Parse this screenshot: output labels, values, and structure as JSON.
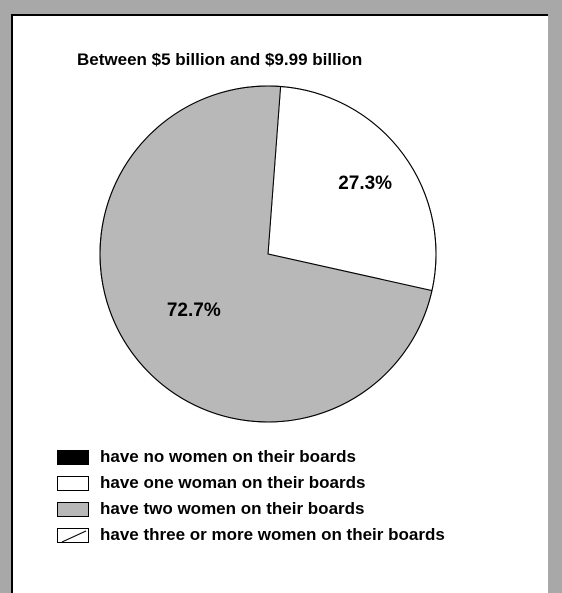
{
  "chart_data": {
    "type": "pie",
    "title": "Between $5 billion and $9.99 billion",
    "slices": [
      {
        "label": "have no women on their boards",
        "value": 0,
        "color": "#000000",
        "display": ""
      },
      {
        "label": "have one woman on their boards",
        "value": 27.3,
        "color": "#ffffff",
        "display": "27.3%"
      },
      {
        "label": "have two women on their boards",
        "value": 72.7,
        "color": "#b8b8b8",
        "display": "72.7%"
      },
      {
        "label": "have three or more women on their boards",
        "value": 0,
        "color": "#ffffff",
        "pattern": "hatch",
        "display": ""
      }
    ],
    "legend_position": "bottom"
  }
}
